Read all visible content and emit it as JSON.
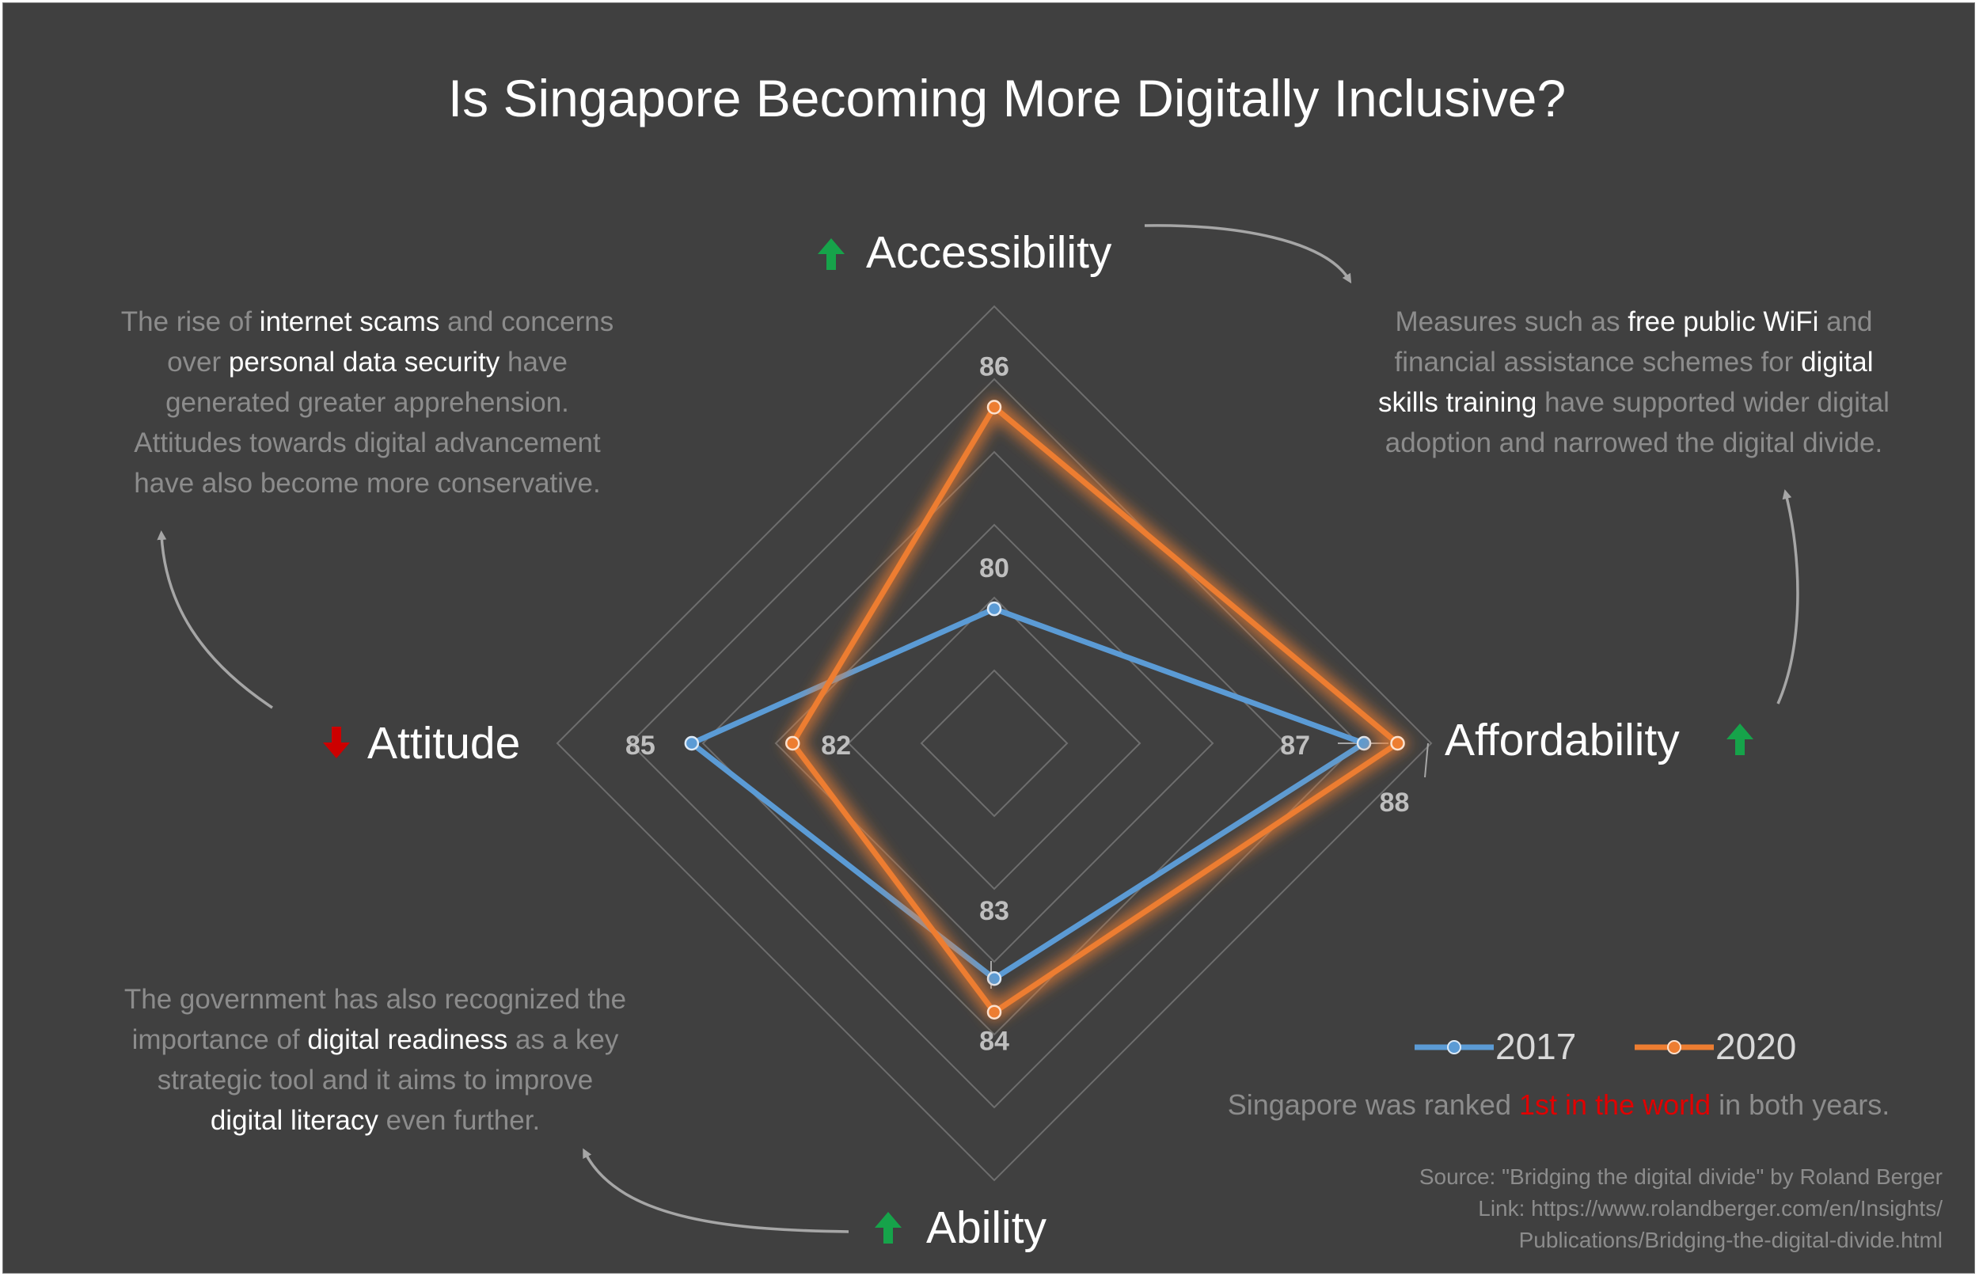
{
  "title": "Is Singapore Becoming More Digitally Inclusive?",
  "chart_data": {
    "type": "radar",
    "title": "Is Singapore Becoming More Digitally Inclusive?",
    "axes": [
      {
        "key": "accessibility",
        "label": "Accessibility",
        "trend": "up"
      },
      {
        "key": "affordability",
        "label": "Affordability",
        "trend": "up"
      },
      {
        "key": "ability",
        "label": "Ability",
        "trend": "up"
      },
      {
        "key": "attitude",
        "label": "Attitude",
        "trend": "down"
      }
    ],
    "range": [
      76,
      89
    ],
    "grid_rings": 6,
    "series": [
      {
        "name": "2017",
        "color": "#5b9bd5",
        "values": [
          80,
          87,
          83,
          85
        ],
        "labels": [
          "80",
          "87",
          "83",
          "85"
        ]
      },
      {
        "name": "2020",
        "color": "#ed7d31",
        "values": [
          86,
          88,
          84,
          82
        ],
        "labels": [
          "86",
          "88",
          "84",
          "82"
        ]
      }
    ],
    "legend_position": "bottom-right"
  },
  "annotations": {
    "attitude": {
      "parts": [
        {
          "text": "The rise of ",
          "hl": false
        },
        {
          "text": "internet scams",
          "hl": true
        },
        {
          "text": " and concerns",
          "hl": false
        },
        {
          "br": true
        },
        {
          "text": "over ",
          "hl": false
        },
        {
          "text": "personal data security",
          "hl": true
        },
        {
          "text": " have",
          "hl": false
        },
        {
          "br": true
        },
        {
          "text": "generated greater apprehension.",
          "hl": false
        },
        {
          "br": true
        },
        {
          "text": "Attitudes towards digital advancement",
          "hl": false
        },
        {
          "br": true
        },
        {
          "text": "have also become more conservative.",
          "hl": false
        }
      ]
    },
    "accessibility": {
      "parts": [
        {
          "text": "Measures such as ",
          "hl": false
        },
        {
          "text": "free public WiFi",
          "hl": true
        },
        {
          "text": " and",
          "hl": false
        },
        {
          "br": true
        },
        {
          "text": "financial assistance schemes for ",
          "hl": false
        },
        {
          "text": "digital",
          "hl": true
        },
        {
          "br": true
        },
        {
          "text": "skills training",
          "hl": true
        },
        {
          "text": " have supported wider digital",
          "hl": false
        },
        {
          "br": true
        },
        {
          "text": "adoption and narrowed the digital divide.",
          "hl": false
        }
      ]
    },
    "ability": {
      "parts": [
        {
          "text": "The government has also recognized the",
          "hl": false
        },
        {
          "br": true
        },
        {
          "text": "importance of ",
          "hl": false
        },
        {
          "text": "digital readiness",
          "hl": true
        },
        {
          "text": " as a key",
          "hl": false
        },
        {
          "br": true
        },
        {
          "text": "strategic tool and it aims to improve",
          "hl": false
        },
        {
          "br": true
        },
        {
          "text": "digital literacy",
          "hl": true
        },
        {
          "text": " even further.",
          "hl": false
        }
      ]
    }
  },
  "ranked": {
    "before": "Singapore was ranked ",
    "highlight": "1st in the world",
    "after": " in both years."
  },
  "source": {
    "line1": "Source: \"Bridging the digital divide\" by Roland Berger",
    "line2": "Link: https://www.rolandberger.com/en/Insights/",
    "line3": "Publications/Bridging-the-digital-divide.html"
  },
  "icons": {
    "up": "arrow-up-icon",
    "down": "arrow-down-icon"
  },
  "colors": {
    "background": "#404040",
    "up_arrow": "#16a34a",
    "down_arrow": "#cc0000",
    "highlight": "#ffffff",
    "muted": "#8c8c8c",
    "ranked_highlight": "#e00000"
  }
}
